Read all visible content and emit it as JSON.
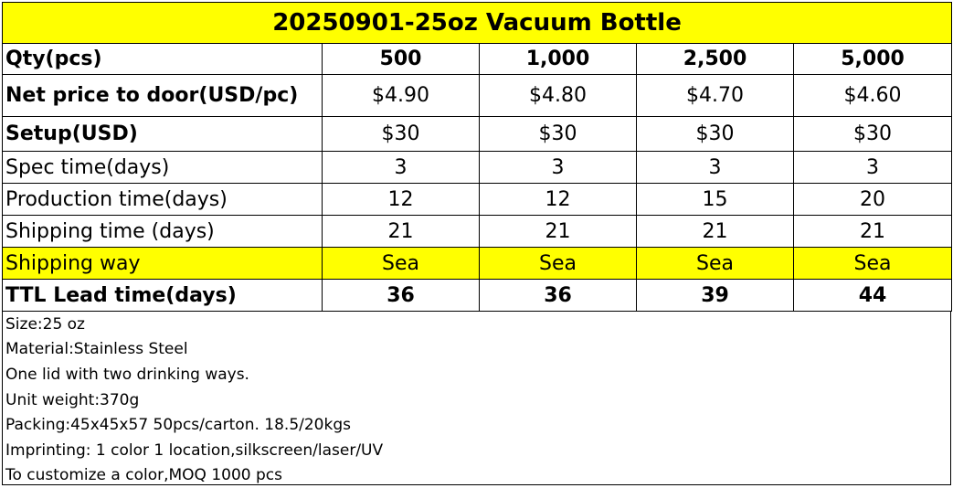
{
  "title": "20250901-25oz Vacuum Bottle",
  "qty": {
    "label": "Qty(pcs)",
    "values": [
      "500",
      "1,000",
      "2,500",
      "5,000"
    ]
  },
  "rows": [
    {
      "label": "Net price to door(USD/pc)",
      "values": [
        "$4.90",
        "$4.80",
        "$4.70",
        "$4.60"
      ]
    },
    {
      "label": "Setup(USD)",
      "values": [
        "$30",
        "$30",
        "$30",
        "$30"
      ]
    },
    {
      "label": "Spec time(days)",
      "values": [
        "3",
        "3",
        "3",
        "3"
      ]
    },
    {
      "label": "Production time(days)",
      "values": [
        "12",
        "12",
        "15",
        "20"
      ]
    },
    {
      "label": "Shipping time (days)",
      "values": [
        "21",
        "21",
        "21",
        "21"
      ]
    },
    {
      "label": "Shipping way",
      "values": [
        "Sea",
        "Sea",
        "Sea",
        "Sea"
      ]
    },
    {
      "label": "TTL Lead time(days)",
      "values": [
        "36",
        "36",
        "39",
        "44"
      ]
    }
  ],
  "notes": [
    "Size:25 oz",
    "Material:Stainless Steel",
    "One lid with two drinking ways.",
    "Unit weight:370g",
    "Packing:45x45x57 50pcs/carton. 18.5/20kgs",
    "Imprinting: 1 color 1 location,silkscreen/laser/UV",
    "To customize a color,MOQ 1000 pcs"
  ],
  "colors": {
    "highlight": "#ffff00",
    "border": "#000000"
  }
}
